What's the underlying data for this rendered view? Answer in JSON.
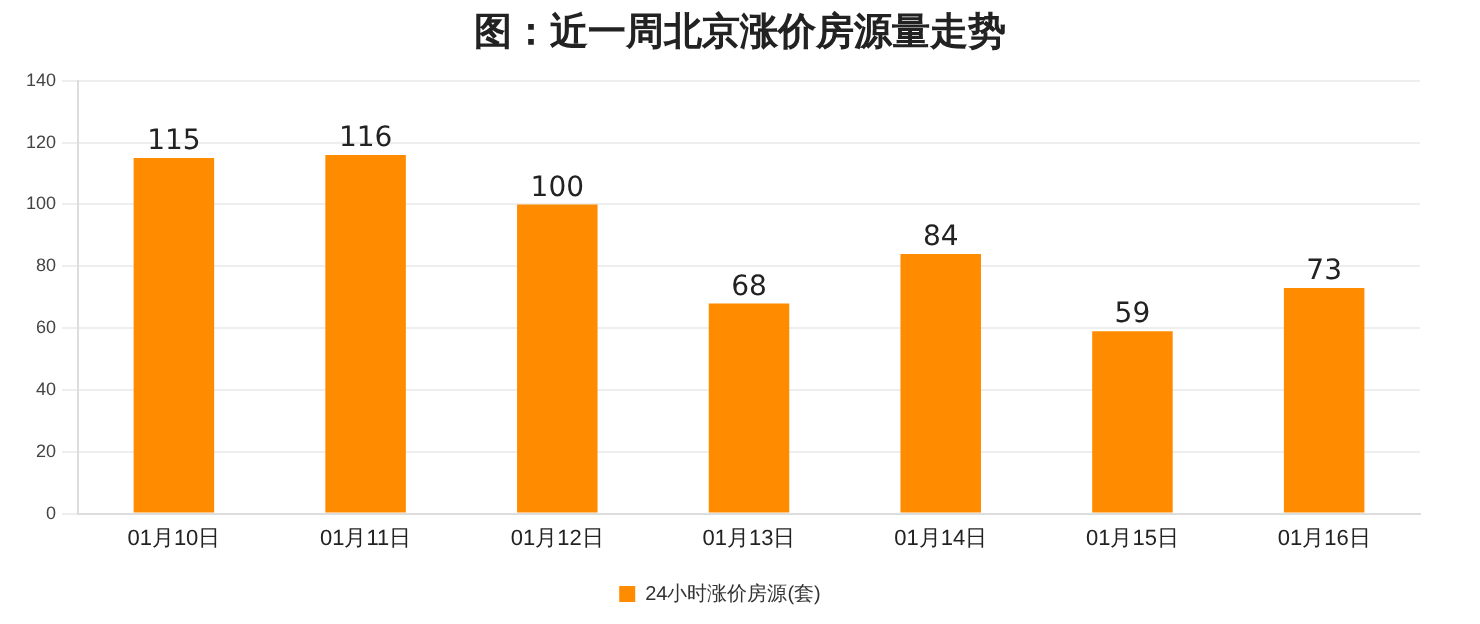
{
  "chart_data": {
    "type": "bar",
    "title": "图：近一周北京涨价房源量走势",
    "categories": [
      "01月10日",
      "01月11日",
      "01月12日",
      "01月13日",
      "01月14日",
      "01月15日",
      "01月16日"
    ],
    "series": [
      {
        "name": "24小时涨价房源(套)",
        "color": "#ff8c00",
        "values": [
          115,
          116,
          100,
          68,
          84,
          59,
          73
        ]
      }
    ],
    "ylim": [
      0,
      140
    ],
    "yticks": [
      0,
      20,
      40,
      60,
      80,
      100,
      120,
      140
    ],
    "grid": "y",
    "legend": "bottom",
    "data_labels": true
  }
}
